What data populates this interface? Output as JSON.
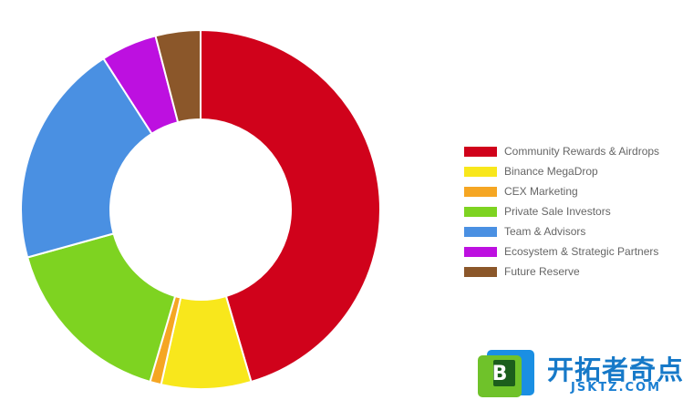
{
  "chart_data": {
    "type": "pie",
    "variant": "doughnut",
    "title": "",
    "categories": [
      "Community Rewards & Airdrops",
      "Binance MegaDrop",
      "CEX Marketing",
      "Private Sale Investors",
      "Team & Advisors",
      "Ecosystem & Strategic Partners",
      "Future Reserve"
    ],
    "values": [
      45,
      8,
      1,
      16,
      20,
      5,
      4
    ],
    "colors": [
      "#d0021b",
      "#f8e71c",
      "#f5a623",
      "#7ed321",
      "#4a90e2",
      "#bd10e0",
      "#8b572a"
    ],
    "legend_position": "right"
  },
  "watermark": {
    "logo_letter": "B",
    "title": "开拓者奇点",
    "subtitle": "JSKTZ.COM"
  }
}
